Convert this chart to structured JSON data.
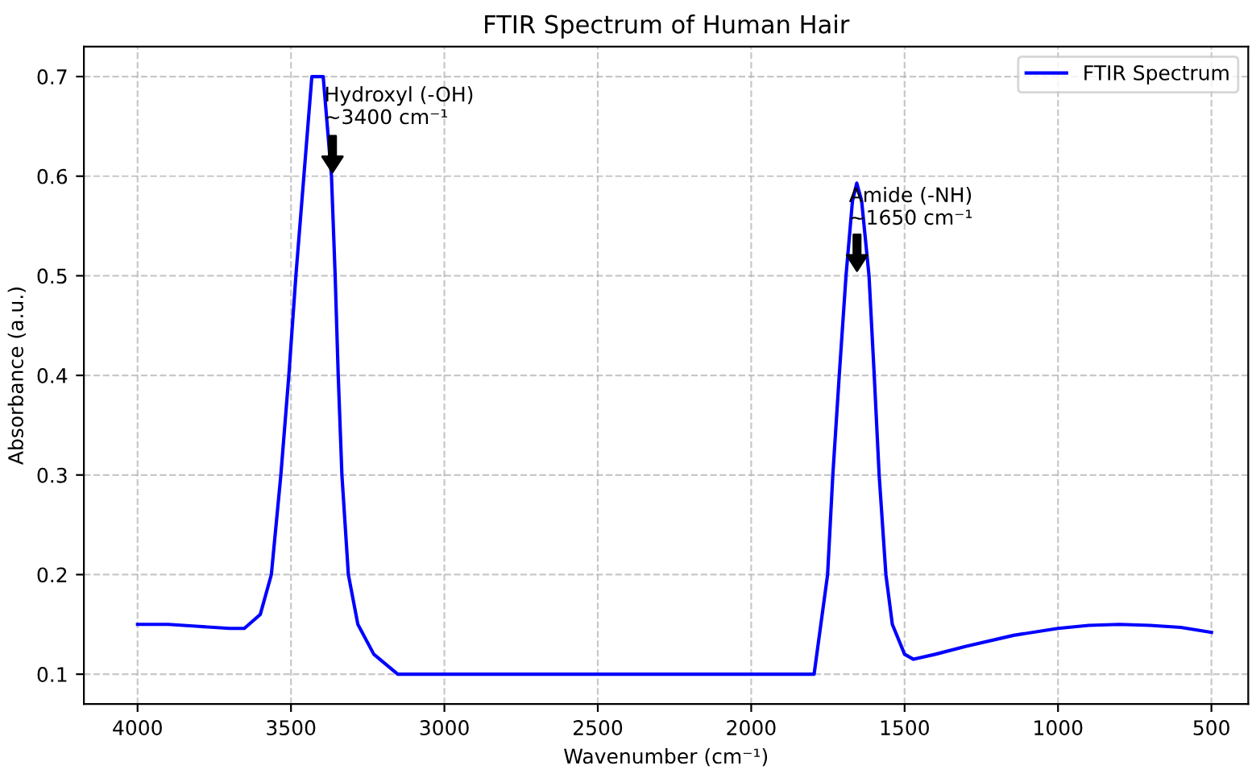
{
  "chart_data": {
    "type": "line",
    "title": "FTIR Spectrum of Human Hair",
    "xlabel": "Wavenumber (cm⁻¹)",
    "ylabel": "Absorbance (a.u.)",
    "x": [
      4000,
      3900,
      3800,
      3700,
      3652,
      3600,
      3564,
      3533,
      3507,
      3484,
      3458,
      3432,
      3395,
      3368,
      3356,
      3346,
      3334,
      3313,
      3282,
      3230,
      3152,
      2500,
      1795,
      1751,
      1734,
      1713,
      1691,
      1670,
      1656,
      1640,
      1616,
      1599,
      1583,
      1561,
      1540,
      1500,
      1471,
      1400,
      1300,
      1145,
      1000,
      900,
      800,
      700,
      600,
      500
    ],
    "series": [
      {
        "name": "FTIR Spectrum",
        "color": "#0000ff",
        "values": [
          0.15,
          0.15,
          0.148,
          0.146,
          0.146,
          0.16,
          0.2,
          0.3,
          0.4,
          0.5,
          0.6,
          0.7,
          0.7,
          0.6,
          0.5,
          0.4,
          0.3,
          0.2,
          0.15,
          0.12,
          0.1,
          0.1,
          0.1,
          0.2,
          0.3,
          0.4,
          0.5,
          0.575,
          0.593,
          0.575,
          0.5,
          0.4,
          0.3,
          0.2,
          0.15,
          0.12,
          0.115,
          0.12,
          0.128,
          0.139,
          0.146,
          0.149,
          0.15,
          0.149,
          0.147,
          0.142
        ]
      }
    ],
    "xlim": [
      4175,
      380
    ],
    "ylim": [
      0.07,
      0.73
    ],
    "xticks": [
      4000,
      3500,
      3000,
      2500,
      2000,
      1500,
      1000,
      500
    ],
    "yticks": [
      0.1,
      0.2,
      0.3,
      0.4,
      0.5,
      0.6,
      0.7
    ],
    "grid": true,
    "legend": "top right",
    "line_style": "solid",
    "marker": "none",
    "annotations": [
      "Hydroxyl (-OH)\n~3400 cm⁻¹",
      "Amide (-NH)\n~1650 cm⁻¹"
    ]
  }
}
